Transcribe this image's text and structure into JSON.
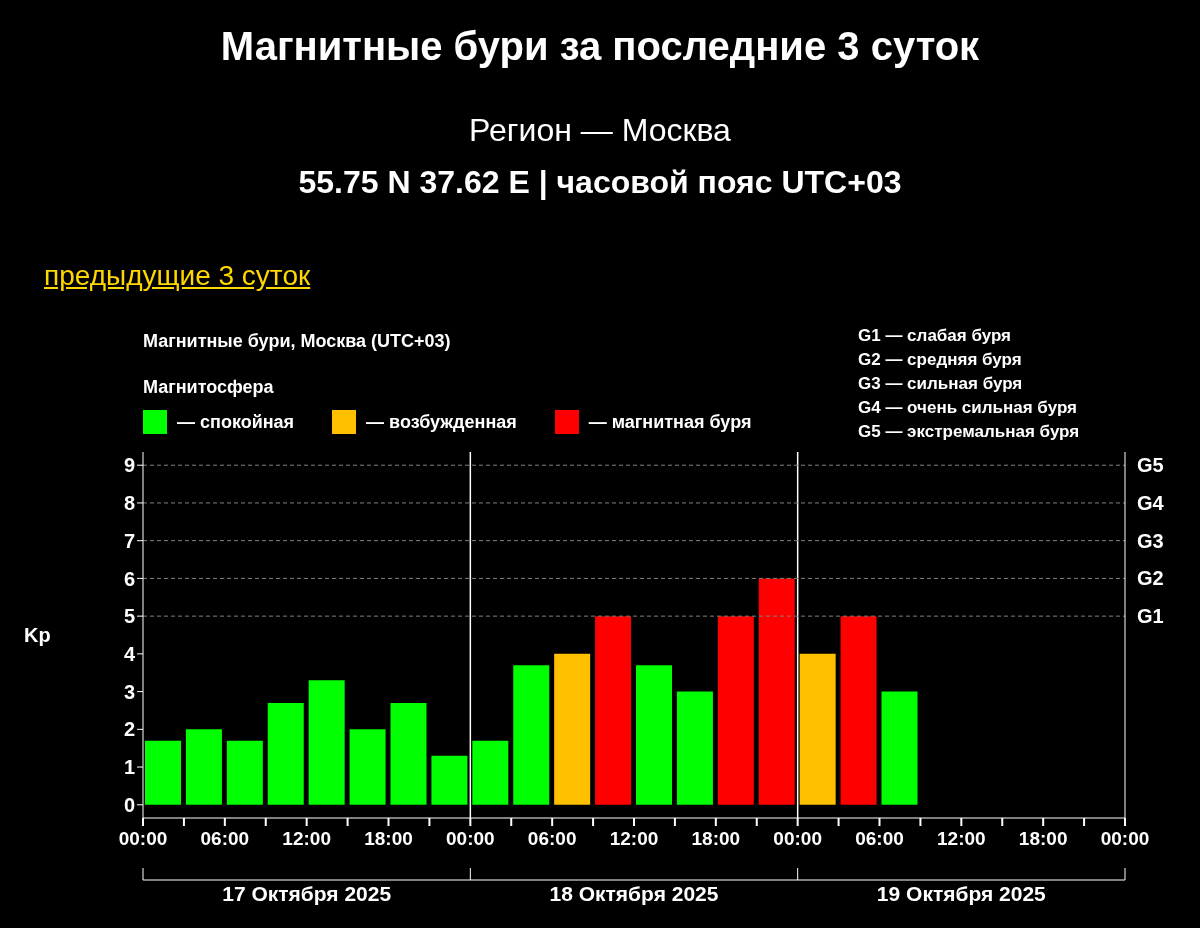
{
  "chart_data": {
    "type": "bar",
    "title": "Магнитные бури за последние 3 суток",
    "subtitle": "Регион — Москва\n55.75 N 37.62 E | часовой пояс UTC+03",
    "ylabel": "Kp",
    "legend_title": "Магнитосфера",
    "legend": "top left",
    "stacked": true,
    "x": [
      "2025-10-17T01:30",
      "2025-10-17T04:30",
      "2025-10-17T07:30",
      "2025-10-17T10:30",
      "2025-10-17T13:30",
      "2025-10-17T16:30",
      "2025-10-17T19:30",
      "2025-10-17T22:30",
      "2025-10-18T01:30",
      "2025-10-18T04:30",
      "2025-10-18T07:30",
      "2025-10-18T10:30",
      "2025-10-18T13:30",
      "2025-10-18T16:30",
      "2025-10-18T19:30",
      "2025-10-18T22:30",
      "2025-10-19T01:30",
      "2025-10-19T04:30",
      "2025-10-19T07:30"
    ],
    "series": [
      {
        "name": "— спокойная",
        "color": "#00ff00",
        "values": [
          1.7,
          2,
          1.7,
          2.7,
          3.3,
          2,
          2.7,
          1.3,
          1.7,
          3.7,
          null,
          null,
          3.7,
          3,
          null,
          null,
          null,
          null,
          3
        ]
      },
      {
        "name": "— возбужденная",
        "color": "#ffc000",
        "values": [
          null,
          null,
          null,
          null,
          null,
          null,
          null,
          null,
          null,
          null,
          4,
          null,
          null,
          null,
          null,
          null,
          4,
          null,
          null
        ]
      },
      {
        "name": "— магнитная буря",
        "color": "#ff0000",
        "values": [
          null,
          null,
          null,
          null,
          null,
          null,
          null,
          null,
          null,
          null,
          null,
          5,
          null,
          null,
          5,
          6,
          null,
          5,
          null
        ]
      }
    ],
    "xlim": [
      "2025-10-17T00:00",
      "2025-10-20T00:00"
    ],
    "xticks": [
      {
        "value": "2025-10-17T00:00",
        "label": "00:00"
      },
      {
        "value": "2025-10-17T03:00",
        "label": null
      },
      {
        "value": "2025-10-17T06:00",
        "label": "06:00"
      },
      {
        "value": "2025-10-17T09:00",
        "label": null
      },
      {
        "value": "2025-10-17T12:00",
        "label": "12:00"
      },
      {
        "value": "2025-10-17T15:00",
        "label": null
      },
      {
        "value": "2025-10-17T18:00",
        "label": "18:00"
      },
      {
        "value": "2025-10-17T21:00",
        "label": null
      },
      {
        "value": "2025-10-18T00:00",
        "label": "00:00"
      },
      {
        "value": "2025-10-18T03:00",
        "label": null
      },
      {
        "value": "2025-10-18T06:00",
        "label": "06:00"
      },
      {
        "value": "2025-10-18T09:00",
        "label": null
      },
      {
        "value": "2025-10-18T12:00",
        "label": "12:00"
      },
      {
        "value": "2025-10-18T15:00",
        "label": null
      },
      {
        "value": "2025-10-18T18:00",
        "label": "18:00"
      },
      {
        "value": "2025-10-18T21:00",
        "label": null
      },
      {
        "value": "2025-10-19T00:00",
        "label": "00:00"
      },
      {
        "value": "2025-10-19T03:00",
        "label": null
      },
      {
        "value": "2025-10-19T06:00",
        "label": "06:00"
      },
      {
        "value": "2025-10-19T09:00",
        "label": null
      },
      {
        "value": "2025-10-19T12:00",
        "label": "12:00"
      },
      {
        "value": "2025-10-19T15:00",
        "label": null
      },
      {
        "value": "2025-10-19T18:00",
        "label": "18:00"
      },
      {
        "value": "2025-10-19T21:00",
        "label": null
      },
      {
        "value": "2025-10-20T00:00",
        "label": "00:00"
      }
    ],
    "ylim": [
      -0.35,
      9.35
    ],
    "yticks": [
      0,
      1,
      2,
      3,
      4,
      5,
      6,
      7,
      8,
      9
    ],
    "ref_lines": [
      {
        "axis": "x",
        "value": "2025-10-18T00:00",
        "color": "#ffffff",
        "line_style": "solid"
      },
      {
        "axis": "x",
        "value": "2025-10-19T00:00",
        "color": "#ffffff",
        "line_style": "solid"
      },
      {
        "axis": "y",
        "value": 5,
        "label": "G1",
        "color": "#808080",
        "line_style": "dashed"
      },
      {
        "axis": "y",
        "value": 6,
        "label": "G2",
        "color": "#808080",
        "line_style": "dashed"
      },
      {
        "axis": "y",
        "value": 7,
        "label": "G3",
        "color": "#808080",
        "line_style": "dashed"
      },
      {
        "axis": "y",
        "value": 8,
        "label": "G4",
        "color": "#808080",
        "line_style": "dashed"
      },
      {
        "axis": "y",
        "value": 9,
        "label": "G5",
        "color": "#808080",
        "line_style": "dashed"
      }
    ],
    "annotations": [
      "предыдущие 3 суток",
      "Магнитные бури, Москва (UTC+03)",
      "G1 — слабая буря",
      "G2 — средняя буря",
      "G3 — сильная буря",
      "G4 — очень сильная буря",
      "G5 — экстремальная буря",
      "17 Октября 2025",
      "18 Октября 2025",
      "19 Октября 2025"
    ]
  }
}
